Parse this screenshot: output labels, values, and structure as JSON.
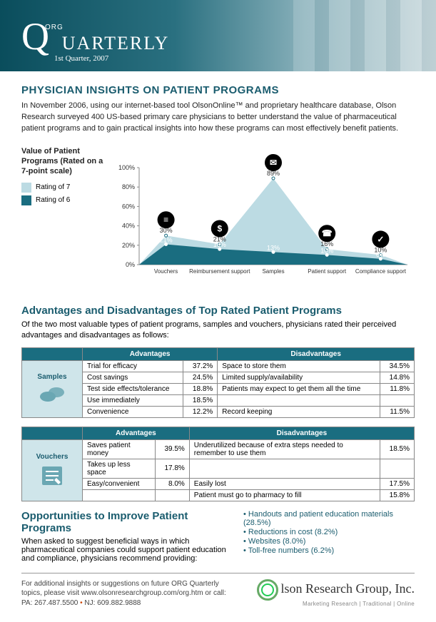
{
  "header": {
    "badge": "ORG",
    "title_rest": "UARTERLY",
    "issue": "1st Quarter, 2007"
  },
  "main_heading": "PHYSICIAN INSIGHTS ON PATIENT PROGRAMS",
  "intro": "In November 2006, using our internet-based tool OlsonOnline™ and proprietary healthcare database, Olson Research surveyed 400 US-based primary care physicians to better understand the value of pharmaceutical patient programs and to gain practical insights into how these programs can most effectively benefit patients.",
  "chart": {
    "type": "area",
    "legend_title": "Value of Patient Programs (Rated on a 7-point scale)",
    "series": [
      {
        "name": "Rating of 7",
        "color": "#bcdbe3"
      },
      {
        "name": "Rating of 6",
        "color": "#1a6d80"
      }
    ],
    "categories": [
      "Vouchers",
      "Reimbursement support",
      "Samples",
      "Patient support",
      "Compliance support"
    ],
    "values_7": [
      30,
      21,
      89,
      16,
      10
    ],
    "values_6": [
      21,
      16,
      13,
      10,
      6
    ],
    "labels_7": [
      "30%",
      "21%",
      "89%",
      "16%",
      "10%"
    ],
    "labels_6": [
      "21%",
      "16%",
      "13%",
      "10%",
      "6%"
    ],
    "ylim": [
      0,
      100
    ],
    "ytick_step": 20,
    "yticks": [
      "0%",
      "20%",
      "40%",
      "60%",
      "80%",
      "100%"
    ],
    "background_color": "#ffffff",
    "axis_color": "#888888",
    "label_fontsize": 9,
    "category_fontsize": 8,
    "icon_circle_fill": "#000000",
    "icon_inner_fill": "#ffffff",
    "icons": [
      "document",
      "dollar",
      "chat",
      "phone",
      "check"
    ]
  },
  "adv_heading": "Advantages and Disadvantages of Top Rated Patient Programs",
  "adv_intro": "Of the two most valuable types of patient programs, samples and vouchers, physicians rated their perceived advantages and disadvantages as follows:",
  "tables": {
    "col_headers": [
      "Advantages",
      "Disadvantages"
    ],
    "header_bg": "#1a6d80",
    "header_fg": "#ffffff",
    "labelcell_bg": "#cfe5ea",
    "border_color": "#888888",
    "samples": {
      "label": "Samples",
      "rows": [
        {
          "adv": "Trial for efficacy",
          "adv_pct": "37.2%",
          "dis": "Space to store them",
          "dis_pct": "34.5%"
        },
        {
          "adv": "Cost savings",
          "adv_pct": "24.5%",
          "dis": "Limited supply/availability",
          "dis_pct": "14.8%"
        },
        {
          "adv": "Test side effects/tolerance",
          "adv_pct": "18.8%",
          "dis": "Patients may expect to get them all the time",
          "dis_pct": "11.8%"
        },
        {
          "adv": "Use immediately",
          "adv_pct": "18.5%",
          "dis": "",
          "dis_pct": ""
        },
        {
          "adv": "Convenience",
          "adv_pct": "12.2%",
          "dis": "Record keeping",
          "dis_pct": "11.5%"
        }
      ]
    },
    "vouchers": {
      "label": "Vouchers",
      "rows": [
        {
          "adv": "Saves patient money",
          "adv_pct": "39.5%",
          "dis": "Underutilized because of extra steps needed to remember to use them",
          "dis_pct": "18.5%"
        },
        {
          "adv": "Takes up less space",
          "adv_pct": "17.8%",
          "dis": "",
          "dis_pct": ""
        },
        {
          "adv": "Easy/convenient",
          "adv_pct": "8.0%",
          "dis": "Easily lost",
          "dis_pct": "17.5%"
        },
        {
          "adv": "",
          "adv_pct": "",
          "dis": "Patient must go to pharmacy to fill",
          "dis_pct": "15.8%"
        }
      ]
    }
  },
  "opportunities": {
    "heading": "Opportunities to Improve Patient Programs",
    "text": "When asked to suggest beneficial ways in which pharmaceutical companies could support patient education and compliance, physicians recommend providing:",
    "items": [
      "Handouts and patient education materials (28.5%)",
      "Reductions in cost (8.2%)",
      "Websites (8.0%)",
      "Toll-free numbers (6.2%)"
    ]
  },
  "footer": {
    "text1": "For additional insights or suggestions on future ORG Quarterly topics, please visit www.olsonresearchgroup.com/org.htm or call:",
    "text2a": "PA: 267.487.5500",
    "text2b": "NJ: 609.882.9888",
    "logo_name": "lson Research Group, Inc.",
    "logo_tag": "Marketing Research | Traditional | Online"
  }
}
